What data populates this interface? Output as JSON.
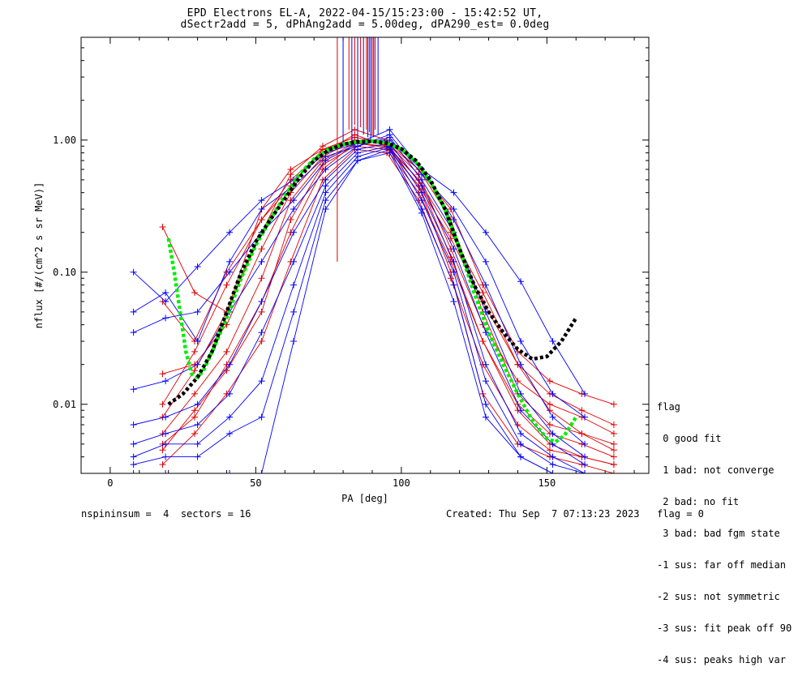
{
  "chart_data": {
    "type": "line",
    "title": "EPD Electrons EL-A, 2022-04-15/15:23:00 - 15:42:52 UT,",
    "subtitle": "dSectr2add = 5, dPhAng2add = 5.00deg, dPA290_est=    0.0deg",
    "xlabel": "PA [deg]",
    "ylabel": "nflux [#/(cm^2 s sr MeV)]",
    "xlim": [
      -10,
      185
    ],
    "ylim": [
      0.003,
      6.0
    ],
    "yscale": "log",
    "xticks": [
      "0",
      "50",
      "100",
      "150"
    ],
    "yticks": [
      "0.01",
      "0.10",
      "1.00"
    ],
    "colors": {
      "blue": "#0000ff",
      "red": "#e00000",
      "black": "#000000",
      "green": "#00ee00"
    },
    "series": [
      {
        "color": "red",
        "x": [
          18,
          29,
          40,
          52,
          62,
          73,
          84,
          95,
          106,
          117,
          128,
          140,
          151,
          162,
          173
        ],
        "y": [
          0.006,
          0.012,
          0.025,
          0.09,
          0.35,
          0.7,
          0.95,
          0.9,
          0.5,
          0.2,
          0.07,
          0.02,
          0.009,
          0.006,
          0.005
        ]
      },
      {
        "color": "red",
        "x": [
          18,
          29,
          40,
          52,
          62,
          73,
          84,
          95,
          106,
          117,
          128,
          140,
          151,
          162,
          173
        ],
        "y": [
          0.0045,
          0.009,
          0.018,
          0.05,
          0.25,
          0.65,
          0.9,
          0.85,
          0.4,
          0.12,
          0.03,
          0.01,
          0.006,
          0.005,
          0.004
        ]
      },
      {
        "color": "red",
        "x": [
          18,
          29,
          40,
          52,
          62,
          73,
          84,
          95,
          106,
          117,
          128,
          140,
          151,
          162,
          173
        ],
        "y": [
          0.008,
          0.018,
          0.05,
          0.2,
          0.55,
          0.9,
          1.2,
          1.0,
          0.6,
          0.25,
          0.05,
          0.012,
          0.007,
          0.006,
          0.0045
        ]
      },
      {
        "color": "red",
        "x": [
          18,
          29,
          40,
          52,
          62,
          73,
          84,
          95,
          106,
          117,
          128,
          140,
          151,
          162,
          173
        ],
        "y": [
          0.0035,
          0.006,
          0.012,
          0.03,
          0.12,
          0.5,
          0.85,
          0.8,
          0.35,
          0.09,
          0.02,
          0.007,
          0.0045,
          0.004,
          0.0035
        ]
      },
      {
        "color": "red",
        "x": [
          18,
          29,
          40,
          52,
          62,
          73,
          84,
          95,
          106,
          117,
          128,
          140,
          151,
          162,
          173
        ],
        "y": [
          0.22,
          0.07,
          0.05,
          0.3,
          0.6,
          0.85,
          1.0,
          0.95,
          0.55,
          0.15,
          0.04,
          0.015,
          0.01,
          0.008,
          0.006
        ]
      },
      {
        "color": "red",
        "x": [
          18,
          29,
          40,
          52,
          62,
          73,
          84,
          95,
          106,
          117,
          128,
          140,
          151,
          162,
          173
        ],
        "y": [
          0.06,
          0.03,
          0.1,
          0.25,
          0.5,
          0.8,
          1.1,
          0.9,
          0.45,
          0.18,
          0.06,
          0.02,
          0.012,
          0.009,
          0.007
        ]
      },
      {
        "color": "red",
        "x": [
          18,
          29,
          40,
          52,
          62,
          73,
          84,
          95,
          106,
          117,
          128,
          140,
          151,
          162,
          173
        ],
        "y": [
          0.017,
          0.02,
          0.04,
          0.15,
          0.4,
          0.75,
          1.0,
          0.92,
          0.5,
          0.13,
          0.03,
          0.009,
          0.005,
          0.004,
          0.0035
        ]
      },
      {
        "color": "red",
        "x": [
          18,
          29,
          40,
          52,
          62,
          73,
          84,
          95,
          106,
          117,
          128,
          140,
          151,
          162,
          173
        ],
        "y": [
          0.005,
          0.008,
          0.02,
          0.06,
          0.2,
          0.6,
          0.95,
          0.88,
          0.45,
          0.1,
          0.012,
          0.005,
          0.004,
          0.0035,
          0.003
        ]
      },
      {
        "color": "red",
        "x": [
          18,
          29,
          40,
          52,
          62,
          73,
          84,
          95,
          106,
          117,
          128,
          140,
          151,
          162,
          173
        ],
        "y": [
          0.01,
          0.025,
          0.08,
          0.25,
          0.45,
          0.85,
          1.05,
          0.95,
          0.6,
          0.3,
          0.08,
          0.025,
          0.015,
          0.012,
          0.01
        ]
      },
      {
        "color": "blue",
        "x": [
          8,
          19,
          30,
          41,
          52,
          63,
          74,
          85,
          96,
          107,
          118,
          129,
          141,
          152,
          163
        ],
        "y": [
          0.1,
          0.06,
          0.11,
          0.2,
          0.35,
          0.5,
          0.8,
          0.95,
          1.0,
          0.6,
          0.4,
          0.2,
          0.085,
          0.03,
          0.012
        ]
      },
      {
        "color": "blue",
        "x": [
          8,
          19,
          30,
          41,
          52,
          63,
          74,
          85,
          96,
          107,
          118,
          129,
          141,
          152,
          163
        ],
        "y": [
          0.05,
          0.07,
          0.03,
          0.12,
          0.3,
          0.45,
          0.75,
          0.9,
          1.1,
          0.55,
          0.3,
          0.12,
          0.03,
          0.012,
          0.008
        ]
      },
      {
        "color": "blue",
        "x": [
          8,
          19,
          30,
          41,
          52,
          63,
          74,
          85,
          96,
          107,
          118,
          129,
          141,
          152,
          163
        ],
        "y": [
          0.035,
          0.045,
          0.05,
          0.1,
          0.2,
          0.35,
          0.7,
          0.95,
          1.2,
          0.6,
          0.25,
          0.08,
          0.02,
          0.008,
          0.005
        ]
      },
      {
        "color": "blue",
        "x": [
          8,
          19,
          30,
          41,
          52,
          63,
          74,
          85,
          96,
          107,
          118,
          129,
          141,
          152,
          163
        ],
        "y": [
          0.013,
          0.015,
          0.02,
          0.05,
          0.12,
          0.3,
          0.6,
          0.9,
          1.05,
          0.5,
          0.2,
          0.05,
          0.012,
          0.006,
          0.004
        ]
      },
      {
        "color": "blue",
        "x": [
          8,
          19,
          30,
          41,
          52,
          63,
          74,
          85,
          96,
          107,
          118,
          129,
          141,
          152,
          163
        ],
        "y": [
          0.007,
          0.008,
          0.01,
          0.02,
          0.06,
          0.2,
          0.5,
          0.85,
          0.95,
          0.45,
          0.15,
          0.035,
          0.009,
          0.005,
          0.0035
        ]
      },
      {
        "color": "blue",
        "x": [
          8,
          19,
          30,
          41,
          52,
          63,
          74,
          85,
          96,
          107,
          118,
          129,
          141,
          152,
          163
        ],
        "y": [
          0.005,
          0.006,
          0.007,
          0.012,
          0.035,
          0.12,
          0.45,
          0.8,
          0.9,
          0.4,
          0.12,
          0.02,
          0.006,
          0.004,
          0.003
        ]
      },
      {
        "color": "blue",
        "x": [
          8,
          19,
          30,
          41,
          52,
          63,
          74,
          85,
          96,
          107,
          118,
          129,
          141,
          152,
          163
        ],
        "y": [
          0.004,
          0.005,
          0.005,
          0.008,
          0.015,
          0.08,
          0.4,
          0.75,
          0.88,
          0.35,
          0.1,
          0.015,
          0.005,
          0.0035,
          0.003
        ]
      },
      {
        "color": "blue",
        "x": [
          8,
          19,
          30,
          41,
          52,
          63,
          74,
          85,
          96,
          107,
          118,
          129,
          141,
          152,
          163
        ],
        "y": [
          0.0035,
          0.004,
          0.004,
          0.006,
          0.008,
          0.05,
          0.35,
          0.7,
          0.85,
          0.3,
          0.08,
          0.01,
          0.004,
          0.003,
          0.003
        ]
      },
      {
        "color": "blue",
        "x": [
          8,
          19,
          30,
          41,
          52,
          63,
          74,
          85,
          96,
          107,
          118,
          129,
          141,
          152,
          163
        ],
        "y": [
          0.003,
          0.003,
          0.003,
          0.003,
          0.003,
          0.03,
          0.3,
          0.7,
          0.8,
          0.28,
          0.06,
          0.008,
          0.004,
          0.003,
          0.003
        ]
      }
    ],
    "fits": [
      {
        "color": "green",
        "style": "dashed",
        "x": [
          20,
          22,
          24,
          26,
          28,
          30,
          32,
          35,
          40,
          45,
          50,
          55,
          60,
          65,
          70,
          75,
          80,
          85,
          90,
          95,
          100,
          105,
          110,
          115,
          120,
          125,
          130,
          135,
          140,
          145,
          150,
          153,
          156,
          160
        ],
        "y": [
          0.18,
          0.1,
          0.05,
          0.025,
          0.017,
          0.016,
          0.018,
          0.025,
          0.045,
          0.09,
          0.16,
          0.25,
          0.38,
          0.55,
          0.72,
          0.85,
          0.93,
          0.97,
          0.98,
          0.95,
          0.85,
          0.68,
          0.48,
          0.3,
          0.15,
          0.07,
          0.035,
          0.02,
          0.012,
          0.0075,
          0.0055,
          0.0052,
          0.0058,
          0.008
        ]
      },
      {
        "color": "black",
        "style": "dashed",
        "x": [
          20,
          25,
          30,
          35,
          40,
          45,
          50,
          55,
          60,
          65,
          70,
          75,
          80,
          85,
          90,
          95,
          100,
          105,
          110,
          115,
          120,
          125,
          130,
          135,
          140,
          145,
          150,
          155,
          160
        ],
        "y": [
          0.01,
          0.012,
          0.016,
          0.025,
          0.05,
          0.1,
          0.17,
          0.25,
          0.36,
          0.52,
          0.7,
          0.84,
          0.93,
          0.97,
          0.98,
          0.95,
          0.86,
          0.7,
          0.5,
          0.3,
          0.15,
          0.08,
          0.05,
          0.035,
          0.026,
          0.022,
          0.023,
          0.03,
          0.045
        ]
      }
    ],
    "spikes": {
      "color_sequence": [
        "red",
        "blue",
        "red",
        "blue",
        "red",
        "blue",
        "red",
        "blue",
        "red",
        "blue",
        "red",
        "blue",
        "red",
        "blue",
        "red",
        "blue"
      ],
      "x": [
        78,
        80,
        82,
        83,
        84,
        85,
        86,
        87,
        88,
        88.5,
        89,
        89.5,
        90,
        90.5,
        91,
        92
      ],
      "y_base": [
        0.12,
        0.9,
        1.2,
        0.95,
        1.3,
        1.0,
        1.25,
        1.1,
        1.2,
        1.05,
        1.15,
        1.0,
        1.1,
        1.05,
        1.2,
        1.1
      ]
    },
    "legend": {
      "title": "flag",
      "entries": [
        " 0 good fit",
        " 1 bad: not converge",
        " 2 bad: no fit",
        " 3 bad: bad fgm state",
        "-1 sus: far off median",
        "-2 sus: not symmetric",
        "-3 sus: fit peak off 90",
        "-4 sus: peaks high var"
      ]
    }
  },
  "footer": {
    "left": "nspininsum =  4  sectors = 16",
    "right": "Created: Thu Sep  7 07:13:23 2023   flag = 0"
  }
}
